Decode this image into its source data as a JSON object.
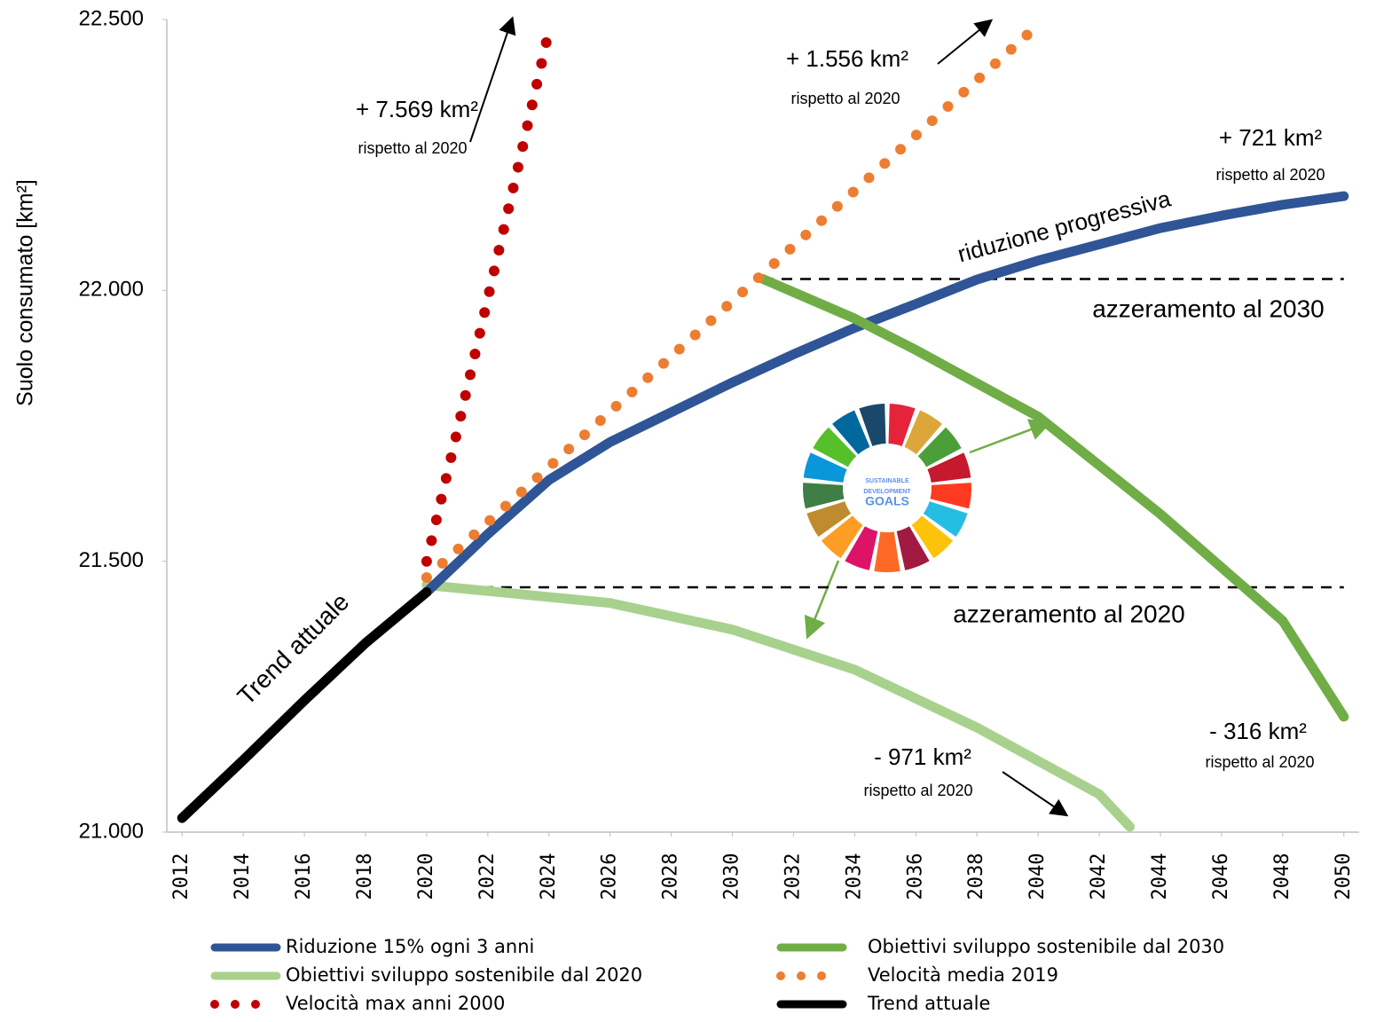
{
  "chart_data": {
    "type": "line",
    "y_label": "Suolo consumato [km²]",
    "xlim": [
      2011.5,
      2050.5
    ],
    "ylim": [
      21000,
      22500
    ],
    "xticks": [
      2012,
      2014,
      2016,
      2018,
      2020,
      2022,
      2024,
      2026,
      2028,
      2030,
      2032,
      2034,
      2036,
      2038,
      2040,
      2042,
      2044,
      2046,
      2048,
      2050
    ],
    "yticks": [
      {
        "value": 21000,
        "label": "21.000"
      },
      {
        "value": 21500,
        "label": "21.500"
      },
      {
        "value": 22000,
        "label": "22.000"
      },
      {
        "value": 22500,
        "label": "22.500"
      }
    ],
    "series": [
      {
        "name": "Riduzione 15% ogni 3 anni",
        "color": "#2f5597",
        "style": "solid",
        "x": [
          2020,
          2022,
          2024,
          2026,
          2028,
          2030,
          2032,
          2034,
          2036,
          2038,
          2040,
          2042,
          2044,
          2046,
          2048,
          2050
        ],
        "values": [
          21443,
          21550,
          21650,
          21720,
          21775,
          21830,
          21882,
          21931,
          21975,
          22020,
          22055,
          22085,
          22115,
          22138,
          22158,
          22174
        ]
      },
      {
        "name": "Obiettivi sviluppo sostenibile dal 2030",
        "color": "#70ad47",
        "style": "solid",
        "x": [
          2031,
          2034,
          2036,
          2040,
          2044,
          2048,
          2050
        ],
        "values": [
          22021,
          21948,
          21890,
          21767,
          21587,
          21390,
          21213
        ]
      },
      {
        "name": "Obiettivi sviluppo sostenibile dal 2020",
        "color": "#a9d18e",
        "style": "solid",
        "x": [
          2020,
          2026,
          2030,
          2034,
          2038,
          2042,
          2043
        ],
        "values": [
          21456,
          21423,
          21374,
          21300,
          21193,
          21070,
          21010
        ]
      },
      {
        "name": "Velocità media 2019",
        "color": "#ed7d31",
        "style": "dotted",
        "x": [
          2020,
          2021,
          2022,
          2023,
          2024,
          2025,
          2026,
          2027,
          2028,
          2029,
          2030,
          2031,
          2032,
          2033,
          2034,
          2035,
          2036,
          2037,
          2038,
          2039,
          2040
        ],
        "values": [
          21470,
          21521,
          21572,
          21623,
          21674,
          21725,
          21776,
          21827,
          21878,
          21929,
          21980,
          22031,
          22082,
          22133,
          22184,
          22235,
          22286,
          22337,
          22388,
          22439,
          22490
        ]
      },
      {
        "name": "Velocità max anni 2000",
        "color": "#c00000",
        "style": "dotted",
        "x": [
          2020,
          2021,
          2022,
          2023,
          2024
        ],
        "values": [
          21500,
          21740,
          21985,
          22230,
          22480
        ]
      },
      {
        "name": "Trend attuale",
        "color": "#000000",
        "style": "solid",
        "x": [
          2012,
          2014,
          2016,
          2018,
          2020
        ],
        "values": [
          21026,
          21133,
          21243,
          21349,
          21443
        ]
      }
    ],
    "reference_lines": [
      {
        "label": "azzeramento al 2030",
        "value": 22021,
        "from": 2031,
        "to": 2050
      },
      {
        "label": "azzeramento al 2020",
        "value": 21452,
        "from": 2020,
        "to": 2050
      }
    ],
    "annotations": [
      "+ 7.569 km²",
      "rispetto al 2020",
      "+ 1.556 km²",
      "rispetto al 2020",
      "+ 721 km²",
      "rispetto al 2020",
      "riduzione progressiva",
      "- 316 km²",
      "rispetto al 2020",
      "- 971 km²",
      "rispetto al 2020",
      "Trend attuale"
    ],
    "logo_text": [
      "SUSTAINABLE",
      "DEVELOPMENT",
      "GOALS"
    ]
  }
}
